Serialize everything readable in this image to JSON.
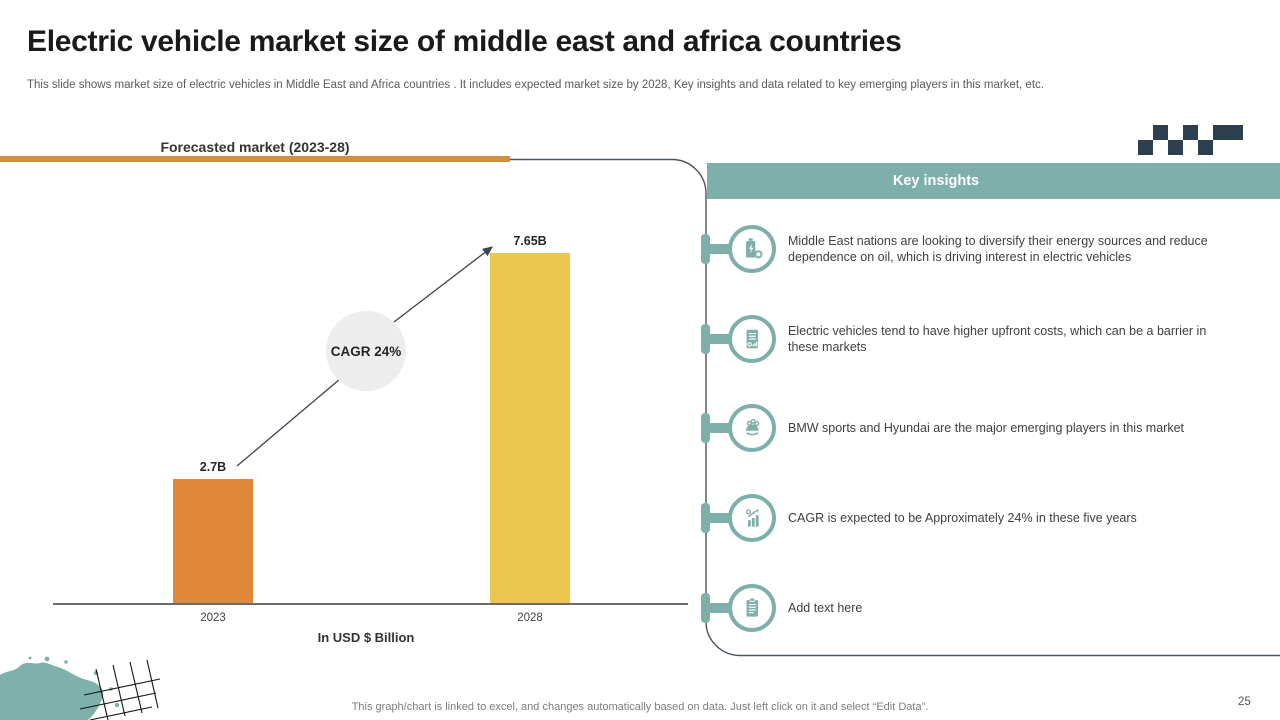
{
  "header": {
    "title": "Electric vehicle market size of middle east and africa countries",
    "subtitle": "This slide shows market size of electric vehicles in Middle East and Africa countries . It includes expected market size by 2028, Key insights and data related to key emerging players in this market, etc."
  },
  "chart_panel": {
    "heading": "Forecasted market (2023-28)",
    "cagr_label": "CAGR 24%",
    "axis_note": "In USD $ Billion"
  },
  "chart_data": {
    "type": "bar",
    "title": "Forecasted market (2023-28)",
    "categories": [
      "2023",
      "2028"
    ],
    "values": [
      2.7,
      7.65
    ],
    "value_labels": [
      "2.7B",
      "7.65B"
    ],
    "xlabel": "In USD $ Billion",
    "ylabel": "",
    "ylim": [
      0,
      7.65
    ],
    "grid": false,
    "legend": "none",
    "annotations": [
      "CAGR 24%"
    ],
    "bar_colors": [
      "#E0883A",
      "#ECC64F"
    ]
  },
  "insights": {
    "header": "Key insights",
    "items": [
      {
        "icon": "battery-gear-icon",
        "text": "Middle East nations are looking to diversify their energy sources and reduce dependence on oil, which is driving interest in electric vehicles"
      },
      {
        "icon": "invoice-document-icon",
        "text": "Electric vehicles tend to have higher upfront costs, which can be a barrier in these markets"
      },
      {
        "icon": "emerging-players-icon",
        "text": "BMW sports and Hyundai are the major emerging players in this market"
      },
      {
        "icon": "growth-chart-icon",
        "text": "CAGR is expected to be Approximately 24% in these five years"
      },
      {
        "icon": "clipboard-icon",
        "text": "Add text here"
      }
    ]
  },
  "footer": {
    "note": "This graph/chart is linked to excel, and changes automatically based on data. Just left click on it and select “Edit Data”.",
    "page_number": "25"
  },
  "colors": {
    "teal": "#7FAFAB",
    "navy_checker": "#2D3E4F",
    "orange_rule": "#D0913E",
    "bar_2023": "#E0883A",
    "bar_2028": "#ECC64F",
    "cagr_circle_bg": "#EDEDED",
    "panel_border": "#4A545E"
  }
}
